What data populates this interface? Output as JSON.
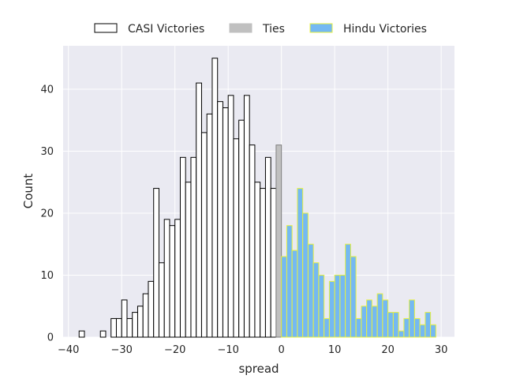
{
  "chart_data": {
    "type": "bar",
    "title": "",
    "xlabel": "spread",
    "ylabel": "Count",
    "xlim": [
      -41,
      32.5
    ],
    "ylim": [
      0,
      47
    ],
    "bin_width": 1,
    "xticks": [
      -40,
      -30,
      -20,
      -10,
      0,
      10,
      20,
      30
    ],
    "xtick_labels": [
      "−40",
      "−30",
      "−20",
      "−10",
      "0",
      "10",
      "20",
      "30"
    ],
    "yticks": [
      0,
      10,
      20,
      30,
      40
    ],
    "ytick_labels": [
      "0",
      "10",
      "20",
      "30",
      "40"
    ],
    "grid": true,
    "legend_position": "top-center, outside plot",
    "colors": {
      "background": "#eaeaf2",
      "grid": "#ffffff",
      "casi_fill": "#ffffff",
      "casi_edge": "#000000",
      "ties_fill": "#c0c0c0",
      "ties_edge": "#808080",
      "hindu_fill": "#74b9f2",
      "hindu_edge": "#e8f040"
    },
    "series": [
      {
        "name": "CASI Victories",
        "key": "casi",
        "bins": [
          {
            "x": -38,
            "count": 1
          },
          {
            "x": -37,
            "count": 0
          },
          {
            "x": -36,
            "count": 0
          },
          {
            "x": -35,
            "count": 0
          },
          {
            "x": -34,
            "count": 1
          },
          {
            "x": -33,
            "count": 0
          },
          {
            "x": -32,
            "count": 3
          },
          {
            "x": -31,
            "count": 3
          },
          {
            "x": -30,
            "count": 6
          },
          {
            "x": -29,
            "count": 3
          },
          {
            "x": -28,
            "count": 4
          },
          {
            "x": -27,
            "count": 5
          },
          {
            "x": -26,
            "count": 7
          },
          {
            "x": -25,
            "count": 9
          },
          {
            "x": -24,
            "count": 24
          },
          {
            "x": -23,
            "count": 12
          },
          {
            "x": -22,
            "count": 19
          },
          {
            "x": -21,
            "count": 18
          },
          {
            "x": -20,
            "count": 19
          },
          {
            "x": -19,
            "count": 29
          },
          {
            "x": -18,
            "count": 25
          },
          {
            "x": -17,
            "count": 29
          },
          {
            "x": -16,
            "count": 41
          },
          {
            "x": -15,
            "count": 33
          },
          {
            "x": -14,
            "count": 36
          },
          {
            "x": -13,
            "count": 45
          },
          {
            "x": -12,
            "count": 38
          },
          {
            "x": -11,
            "count": 37
          },
          {
            "x": -10,
            "count": 39
          },
          {
            "x": -9,
            "count": 32
          },
          {
            "x": -8,
            "count": 35
          },
          {
            "x": -7,
            "count": 39
          },
          {
            "x": -6,
            "count": 31
          },
          {
            "x": -5,
            "count": 25
          },
          {
            "x": -4,
            "count": 24
          },
          {
            "x": -3,
            "count": 29
          },
          {
            "x": -2,
            "count": 24
          }
        ]
      },
      {
        "name": "Ties",
        "key": "ties",
        "bins": [
          {
            "x": -1,
            "count": 31
          }
        ]
      },
      {
        "name": "Hindu Victories",
        "key": "hindu",
        "bins": [
          {
            "x": 0,
            "count": 13
          },
          {
            "x": 1,
            "count": 18
          },
          {
            "x": 2,
            "count": 14
          },
          {
            "x": 3,
            "count": 24
          },
          {
            "x": 4,
            "count": 20
          },
          {
            "x": 5,
            "count": 15
          },
          {
            "x": 6,
            "count": 12
          },
          {
            "x": 7,
            "count": 10
          },
          {
            "x": 8,
            "count": 3
          },
          {
            "x": 9,
            "count": 9
          },
          {
            "x": 10,
            "count": 10
          },
          {
            "x": 11,
            "count": 10
          },
          {
            "x": 12,
            "count": 15
          },
          {
            "x": 13,
            "count": 13
          },
          {
            "x": 14,
            "count": 3
          },
          {
            "x": 15,
            "count": 5
          },
          {
            "x": 16,
            "count": 6
          },
          {
            "x": 17,
            "count": 5
          },
          {
            "x": 18,
            "count": 7
          },
          {
            "x": 19,
            "count": 6
          },
          {
            "x": 20,
            "count": 4
          },
          {
            "x": 21,
            "count": 4
          },
          {
            "x": 22,
            "count": 1
          },
          {
            "x": 23,
            "count": 3
          },
          {
            "x": 24,
            "count": 6
          },
          {
            "x": 25,
            "count": 3
          },
          {
            "x": 26,
            "count": 2
          },
          {
            "x": 27,
            "count": 4
          },
          {
            "x": 28,
            "count": 2
          }
        ]
      }
    ]
  }
}
